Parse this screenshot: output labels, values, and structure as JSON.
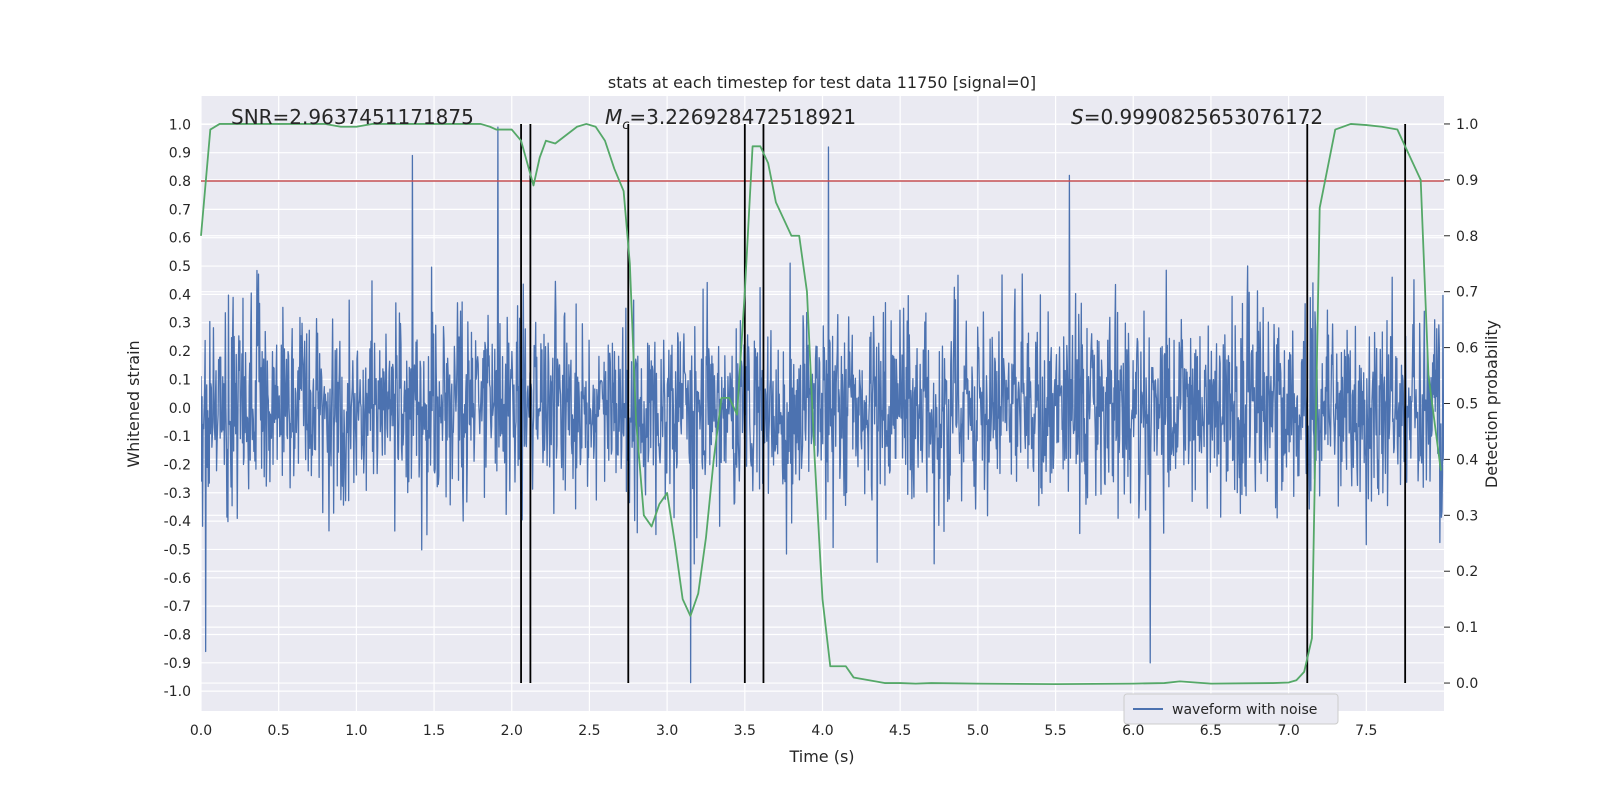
{
  "chart_data": {
    "type": "line",
    "title": "stats at each timestep for test data 11750 [signal=0]",
    "xlabel": "Time (s)",
    "ylabel": "Whitened strain",
    "ylabel_right": "Detection probability",
    "xlim": [
      0.0,
      8.0
    ],
    "ylim": [
      -1.07,
      1.1
    ],
    "ylim_right": [
      -0.05,
      1.05
    ],
    "x_ticks": [
      "0.0",
      "0.5",
      "1.0",
      "1.5",
      "2.0",
      "2.5",
      "3.0",
      "3.5",
      "4.0",
      "4.5",
      "5.0",
      "5.5",
      "6.0",
      "6.5",
      "7.0",
      "7.5"
    ],
    "y_ticks": [
      "1.0",
      "0.9",
      "0.8",
      "0.7",
      "0.6",
      "0.5",
      "0.4",
      "0.3",
      "0.2",
      "0.1",
      "0.0",
      "-0.1",
      "-0.2",
      "-0.3",
      "-0.4",
      "-0.5",
      "-0.6",
      "-0.7",
      "-0.8",
      "-0.9",
      "-1.0"
    ],
    "y_ticks_right": [
      "1.0",
      "0.9",
      "0.8",
      "0.7",
      "0.6",
      "0.5",
      "0.4",
      "0.3",
      "0.2",
      "0.1",
      "0.0"
    ],
    "annotations": {
      "snr": "SNR=2.9637451171875",
      "mc_symbol": "M",
      "mc_sub": "c",
      "mc_value": "=3.226928472518921",
      "s_symbol": "S",
      "s_value": "=0.9990825653076172"
    },
    "legend": {
      "label": "waveform with noise",
      "location": "lower-right"
    },
    "threshold": {
      "value": 0.8,
      "color": "#c44e52"
    },
    "vertical_lines_x": [
      2.06,
      2.12,
      2.75,
      3.5,
      3.62,
      7.12,
      7.75
    ],
    "waveform": {
      "name": "waveform with noise",
      "color": "#4c72b0",
      "note": "dense noise trace between about -0.97 and 0.99",
      "seed": 11750,
      "samples": 2400,
      "noise_std": 0.17,
      "spikes": [
        {
          "t": 1.91,
          "v": 0.99
        },
        {
          "t": 4.04,
          "v": 0.92
        },
        {
          "t": 3.15,
          "v": -0.97
        },
        {
          "t": 6.11,
          "v": -0.9
        },
        {
          "t": 0.03,
          "v": -0.86
        },
        {
          "t": 1.36,
          "v": 0.89
        },
        {
          "t": 5.59,
          "v": 0.82
        }
      ]
    },
    "series": [
      {
        "name": "detection probability",
        "axis": "right",
        "color": "#55a868",
        "x": [
          0.0,
          0.06,
          0.12,
          0.2,
          0.3,
          0.4,
          0.5,
          0.6,
          0.7,
          0.8,
          0.9,
          1.0,
          1.1,
          1.2,
          1.3,
          1.4,
          1.5,
          1.6,
          1.7,
          1.8,
          1.86,
          1.9,
          1.95,
          2.0,
          2.06,
          2.1,
          2.14,
          2.18,
          2.22,
          2.28,
          2.35,
          2.42,
          2.48,
          2.54,
          2.6,
          2.66,
          2.72,
          2.76,
          2.8,
          2.85,
          2.9,
          2.95,
          3.0,
          3.05,
          3.1,
          3.15,
          3.2,
          3.25,
          3.3,
          3.35,
          3.4,
          3.45,
          3.5,
          3.55,
          3.6,
          3.65,
          3.7,
          3.75,
          3.8,
          3.85,
          3.9,
          3.95,
          4.0,
          4.05,
          4.1,
          4.15,
          4.2,
          4.3,
          4.4,
          4.5,
          4.6,
          4.7,
          5.0,
          5.5,
          6.0,
          6.2,
          6.3,
          6.4,
          6.5,
          6.9,
          7.0,
          7.05,
          7.1,
          7.15,
          7.2,
          7.3,
          7.4,
          7.5,
          7.6,
          7.7,
          7.75,
          7.8,
          7.85,
          7.9,
          7.98
        ],
        "values": [
          0.8,
          0.99,
          1.0,
          1.0,
          1.0,
          1.0,
          1.0,
          1.0,
          1.0,
          1.0,
          0.995,
          0.995,
          1.0,
          1.0,
          1.0,
          1.0,
          1.0,
          1.0,
          1.0,
          1.0,
          0.995,
          0.99,
          0.99,
          0.99,
          0.97,
          0.93,
          0.89,
          0.94,
          0.97,
          0.965,
          0.98,
          0.995,
          1.0,
          0.995,
          0.97,
          0.92,
          0.88,
          0.75,
          0.47,
          0.3,
          0.28,
          0.32,
          0.34,
          0.25,
          0.15,
          0.12,
          0.16,
          0.26,
          0.4,
          0.51,
          0.51,
          0.48,
          0.7,
          0.96,
          0.96,
          0.93,
          0.86,
          0.83,
          0.8,
          0.8,
          0.7,
          0.4,
          0.15,
          0.03,
          0.03,
          0.03,
          0.01,
          0.005,
          0.0,
          0.0,
          -0.001,
          0.0,
          -0.001,
          -0.002,
          -0.001,
          0.0,
          0.003,
          0.001,
          -0.001,
          0.0,
          0.001,
          0.005,
          0.02,
          0.08,
          0.85,
          0.99,
          1.0,
          0.998,
          0.995,
          0.99,
          0.96,
          0.93,
          0.9,
          0.55,
          0.38
        ]
      }
    ]
  }
}
